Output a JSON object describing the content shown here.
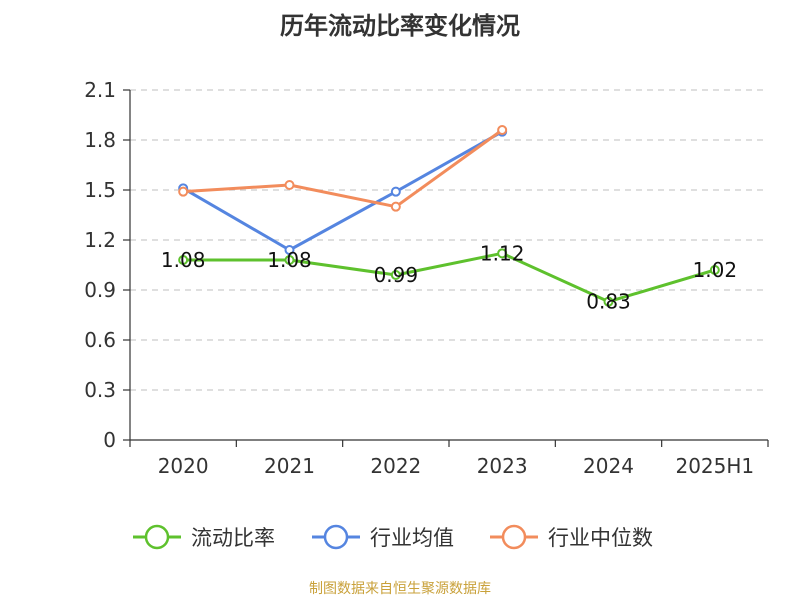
{
  "title": "历年流动比率变化情况",
  "source": "制图数据来自恒生聚源数据库",
  "colors": {
    "current_ratio": "#5ec12d",
    "industry_mean": "#5585e0",
    "industry_median": "#f28c5c",
    "grid": "#cccccc",
    "axis": "#333333"
  },
  "chart_data": {
    "type": "line",
    "title": "历年流动比率变化情况",
    "categories": [
      "2020",
      "2021",
      "2022",
      "2023",
      "2024",
      "2025H1"
    ],
    "ylim": [
      0,
      2.1
    ],
    "yticks": [
      "0",
      "0.3",
      "0.6",
      "0.9",
      "1.2",
      "1.5",
      "1.8",
      "2.1"
    ],
    "grid": true,
    "legend_position": "bottom",
    "series": [
      {
        "name": "流动比率",
        "key": "current_ratio",
        "values": [
          1.08,
          1.08,
          0.99,
          1.12,
          0.83,
          1.02
        ],
        "labels": [
          "1.08",
          "1.08",
          "0.99",
          "1.12",
          "0.83",
          "1.02"
        ]
      },
      {
        "name": "行业均值",
        "key": "industry_mean",
        "values": [
          1.51,
          1.14,
          1.49,
          1.85,
          null,
          null
        ]
      },
      {
        "name": "行业中位数",
        "key": "industry_median",
        "values": [
          1.49,
          1.53,
          1.4,
          1.86,
          null,
          null
        ]
      }
    ]
  }
}
